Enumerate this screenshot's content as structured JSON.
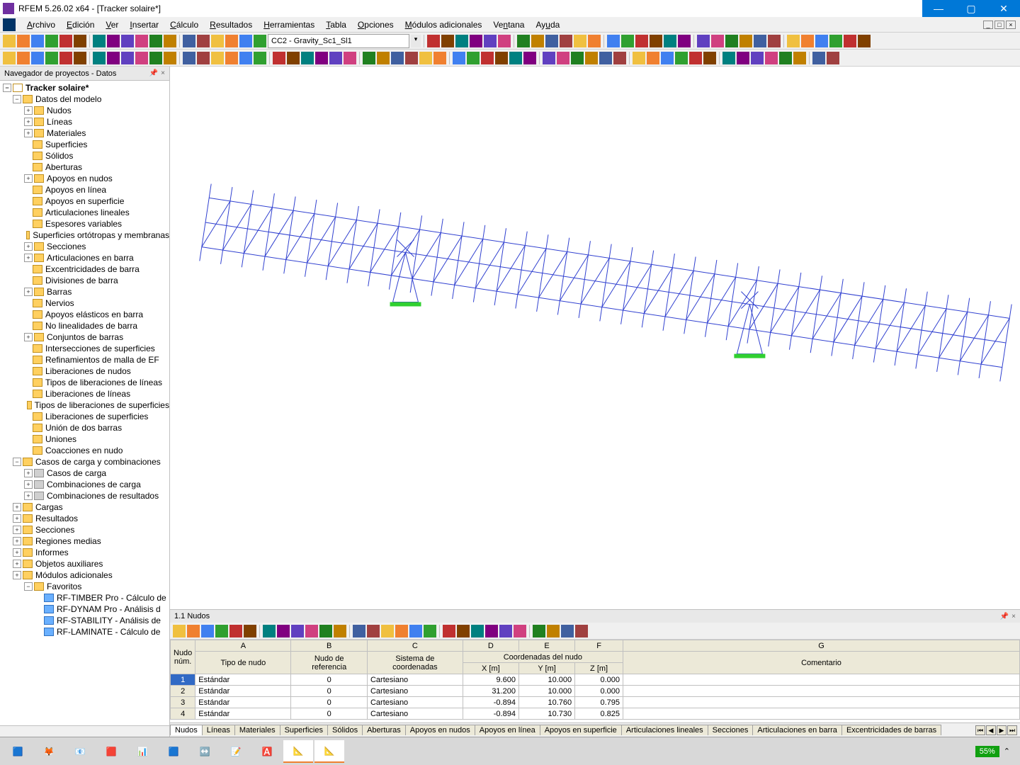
{
  "window": {
    "title": "RFEM 5.26.02 x64 - [Tracker solaire*]"
  },
  "menu": {
    "items": [
      "Archivo",
      "Edición",
      "Ver",
      "Insertar",
      "Cálculo",
      "Resultados",
      "Herramientas",
      "Tabla",
      "Opciones",
      "Módulos adicionales",
      "Ventana",
      "Ayuda"
    ]
  },
  "loadcase": {
    "value": "CC2 - Gravity_Sc1_Sl1"
  },
  "navigator": {
    "title": "Navegador de proyectos - Datos",
    "root": "Tracker solaire*",
    "model": "Datos del modelo",
    "items": [
      "Nudos",
      "Líneas",
      "Materiales",
      "Superficies",
      "Sólidos",
      "Aberturas",
      "Apoyos en nudos",
      "Apoyos en línea",
      "Apoyos en superficie",
      "Articulaciones lineales",
      "Espesores variables",
      "Superficies ortótropas y membranas",
      "Secciones",
      "Articulaciones en barra",
      "Excentricidades de barra",
      "Divisiones de barra",
      "Barras",
      "Nervios",
      "Apoyos elásticos en barra",
      "No linealidades de barra",
      "Conjuntos de barras",
      "Intersecciones de superficies",
      "Refinamientos de malla de EF",
      "Liberaciones de nudos",
      "Tipos de liberaciones de líneas",
      "Liberaciones de líneas",
      "Tipos de liberaciones de superficies",
      "Liberaciones de superficies",
      "Unión de dos barras",
      "Uniones",
      "Coacciones en nudo"
    ],
    "loads_section": "Casos de carga y combinaciones",
    "loads_items": [
      "Casos de carga",
      "Combinaciones de carga",
      "Combinaciones de resultados"
    ],
    "other": [
      "Cargas",
      "Resultados",
      "Secciones",
      "Regiones medias",
      "Informes",
      "Objetos auxiliares",
      "Módulos adicionales"
    ],
    "favorites": "Favoritos",
    "modules": [
      "RF-TIMBER Pro - Cálculo de",
      "RF-DYNAM Pro - Análisis d",
      "RF-STABILITY - Análisis de",
      "RF-LAMINATE - Cálculo de"
    ]
  },
  "table": {
    "title": "1.1 Nudos",
    "cols": [
      "A",
      "B",
      "C",
      "D",
      "E",
      "F",
      "G"
    ],
    "header1": {
      "nudo": "Nudo",
      "num": "núm.",
      "tipo": "Tipo de nudo",
      "nref": "Nudo de",
      "ref": "referencia",
      "sist": "Sistema de",
      "coord": "coordenadas",
      "coordsec": "Coordenadas del nudo",
      "x": "X [m]",
      "y": "Y [m]",
      "z": "Z [m]",
      "com": "Comentario"
    },
    "rows": [
      {
        "n": "1",
        "tipo": "Estándar",
        "ref": "0",
        "sist": "Cartesiano",
        "x": "9.600",
        "y": "10.000",
        "z": "0.000"
      },
      {
        "n": "2",
        "tipo": "Estándar",
        "ref": "0",
        "sist": "Cartesiano",
        "x": "31.200",
        "y": "10.000",
        "z": "0.000"
      },
      {
        "n": "3",
        "tipo": "Estándar",
        "ref": "0",
        "sist": "Cartesiano",
        "x": "-0.894",
        "y": "10.760",
        "z": "0.795"
      },
      {
        "n": "4",
        "tipo": "Estándar",
        "ref": "0",
        "sist": "Cartesiano",
        "x": "-0.894",
        "y": "10.730",
        "z": "0.825"
      }
    ],
    "tabs": [
      "Nudos",
      "Líneas",
      "Materiales",
      "Superficies",
      "Sólidos",
      "Aberturas",
      "Apoyos en nudos",
      "Apoyos en línea",
      "Apoyos en superficie",
      "Articulaciones lineales",
      "Secciones",
      "Articulaciones en barra",
      "Excentricidades de barras"
    ]
  },
  "tray": {
    "pct": "55%"
  },
  "colors": {
    "tb": [
      "#f0c040",
      "#f08030",
      "#4080f0",
      "#30a030",
      "#c03030",
      "#804000",
      "#008080",
      "#800080",
      "#6040c0",
      "#d04080",
      "#208020",
      "#c08000",
      "#4060a0",
      "#a04040"
    ]
  }
}
